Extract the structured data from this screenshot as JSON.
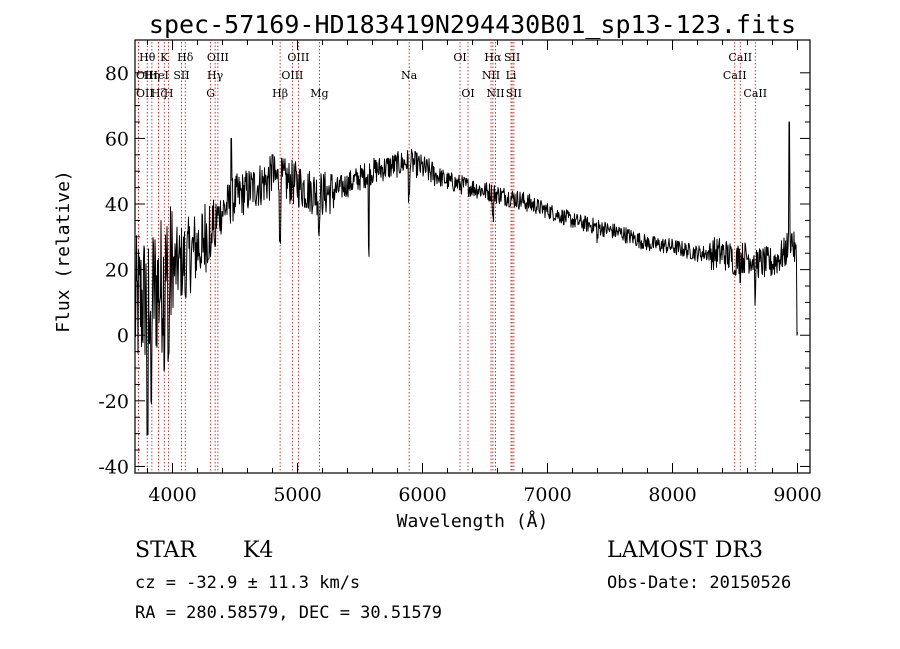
{
  "title": "spec-57169-HD183419N294430B01_sp13-123.fits",
  "info": {
    "class_label": "STAR",
    "subclass": "K4",
    "cz_text": "cz = -32.9 ± 11.3 km/s",
    "radec_text": "RA = 280.58579, DEC =  30.51579",
    "survey": "LAMOST DR3",
    "obs_date_text": "Obs-Date: 20150526"
  },
  "chart_data": {
    "type": "line",
    "title": "spec-57169-HD183419N294430B01_sp13-123.fits",
    "xlabel": "Wavelength (Å)",
    "ylabel": "Flux (relative)",
    "xlim": [
      3700,
      9100
    ],
    "ylim": [
      -42,
      90
    ],
    "xticks": [
      4000,
      5000,
      6000,
      7000,
      8000,
      9000
    ],
    "yticks": [
      -40,
      -20,
      0,
      20,
      40,
      60,
      80
    ],
    "line_color": "#000000",
    "marker_color": "#cc0000",
    "spectrum_anchors": {
      "x": [
        3700,
        3800,
        3900,
        4000,
        4100,
        4200,
        4300,
        4400,
        4500,
        4600,
        4700,
        4800,
        4900,
        5000,
        5100,
        5200,
        5300,
        5400,
        5500,
        5600,
        5700,
        5800,
        5900,
        6000,
        6100,
        6200,
        6300,
        6400,
        6500,
        6600,
        6700,
        6800,
        7000,
        7200,
        7400,
        7600,
        7800,
        8000,
        8200,
        8400,
        8500,
        8600,
        8700,
        8800,
        8900,
        8950,
        9000
      ],
      "y": [
        8,
        12,
        15,
        20,
        23,
        27,
        33,
        38,
        42,
        44,
        46,
        48,
        47,
        46,
        44,
        43,
        44,
        46,
        48,
        50,
        51,
        52,
        53,
        51,
        49,
        47,
        46,
        45,
        44,
        43,
        42,
        41,
        38,
        35,
        33,
        31,
        28,
        27,
        25,
        25,
        23,
        24,
        22,
        22,
        25,
        30,
        22
      ]
    },
    "dips": [
      {
        "x": 3800,
        "y": -30
      },
      {
        "x": 3830,
        "y": -22
      },
      {
        "x": 3934,
        "y": -10
      },
      {
        "x": 3969,
        "y": -6
      },
      {
        "x": 4102,
        "y": 12
      },
      {
        "x": 4227,
        "y": 22
      },
      {
        "x": 4305,
        "y": 25
      },
      {
        "x": 4341,
        "y": 28
      },
      {
        "x": 4861,
        "y": 30
      },
      {
        "x": 5173,
        "y": 32
      },
      {
        "x": 5570,
        "y": 26
      },
      {
        "x": 5893,
        "y": 42
      },
      {
        "x": 6563,
        "y": 36
      },
      {
        "x": 7400,
        "y": 30
      },
      {
        "x": 8498,
        "y": 21
      },
      {
        "x": 8542,
        "y": 18
      },
      {
        "x": 8662,
        "y": 11
      },
      {
        "x": 9000,
        "y": 2
      }
    ],
    "spikes": [
      {
        "x": 8935,
        "y": 65
      },
      {
        "x": 4470,
        "y": 60
      },
      {
        "x": 4800,
        "y": 55
      }
    ],
    "lines": [
      {
        "label": "Hθ",
        "x": 3798,
        "row": 0
      },
      {
        "label": "K",
        "x": 3934,
        "row": 0
      },
      {
        "label": "Hδ",
        "x": 4102,
        "row": 0
      },
      {
        "label": "OIII",
        "x": 4363,
        "row": 0
      },
      {
        "label": "OIII",
        "x": 5007,
        "row": 0
      },
      {
        "label": "OI",
        "x": 6300,
        "row": 0
      },
      {
        "label": "Hα",
        "x": 6563,
        "row": 0
      },
      {
        "label": "SII",
        "x": 6717,
        "row": 0
      },
      {
        "label": "CaII",
        "x": 8542,
        "row": 0
      },
      {
        "label": "OII",
        "x": 3727,
        "row": 1
      },
      {
        "label": "Hη",
        "x": 3835,
        "row": 1
      },
      {
        "label": "HeI",
        "x": 3889,
        "row": 1
      },
      {
        "label": "SII",
        "x": 4072,
        "row": 1
      },
      {
        "label": "Hγ",
        "x": 4341,
        "row": 1
      },
      {
        "label": "OIII",
        "x": 4959,
        "row": 1
      },
      {
        "label": "Na",
        "x": 5893,
        "row": 1
      },
      {
        "label": "NII",
        "x": 6548,
        "row": 1
      },
      {
        "label": "Li",
        "x": 6708,
        "row": 1
      },
      {
        "label": "CaII",
        "x": 8498,
        "row": 1
      },
      {
        "label": "OII",
        "x": 3727,
        "row": 2
      },
      {
        "label": "Hζ",
        "x": 3889,
        "row": 2
      },
      {
        "label": "H",
        "x": 3969,
        "row": 2
      },
      {
        "label": "G",
        "x": 4305,
        "row": 2
      },
      {
        "label": "Hβ",
        "x": 4861,
        "row": 2
      },
      {
        "label": "Mg",
        "x": 5175,
        "row": 2
      },
      {
        "label": "OI",
        "x": 6364,
        "row": 2
      },
      {
        "label": "NII",
        "x": 6584,
        "row": 2
      },
      {
        "label": "SII",
        "x": 6731,
        "row": 2
      },
      {
        "label": "CaII",
        "x": 8662,
        "row": 2
      }
    ]
  }
}
